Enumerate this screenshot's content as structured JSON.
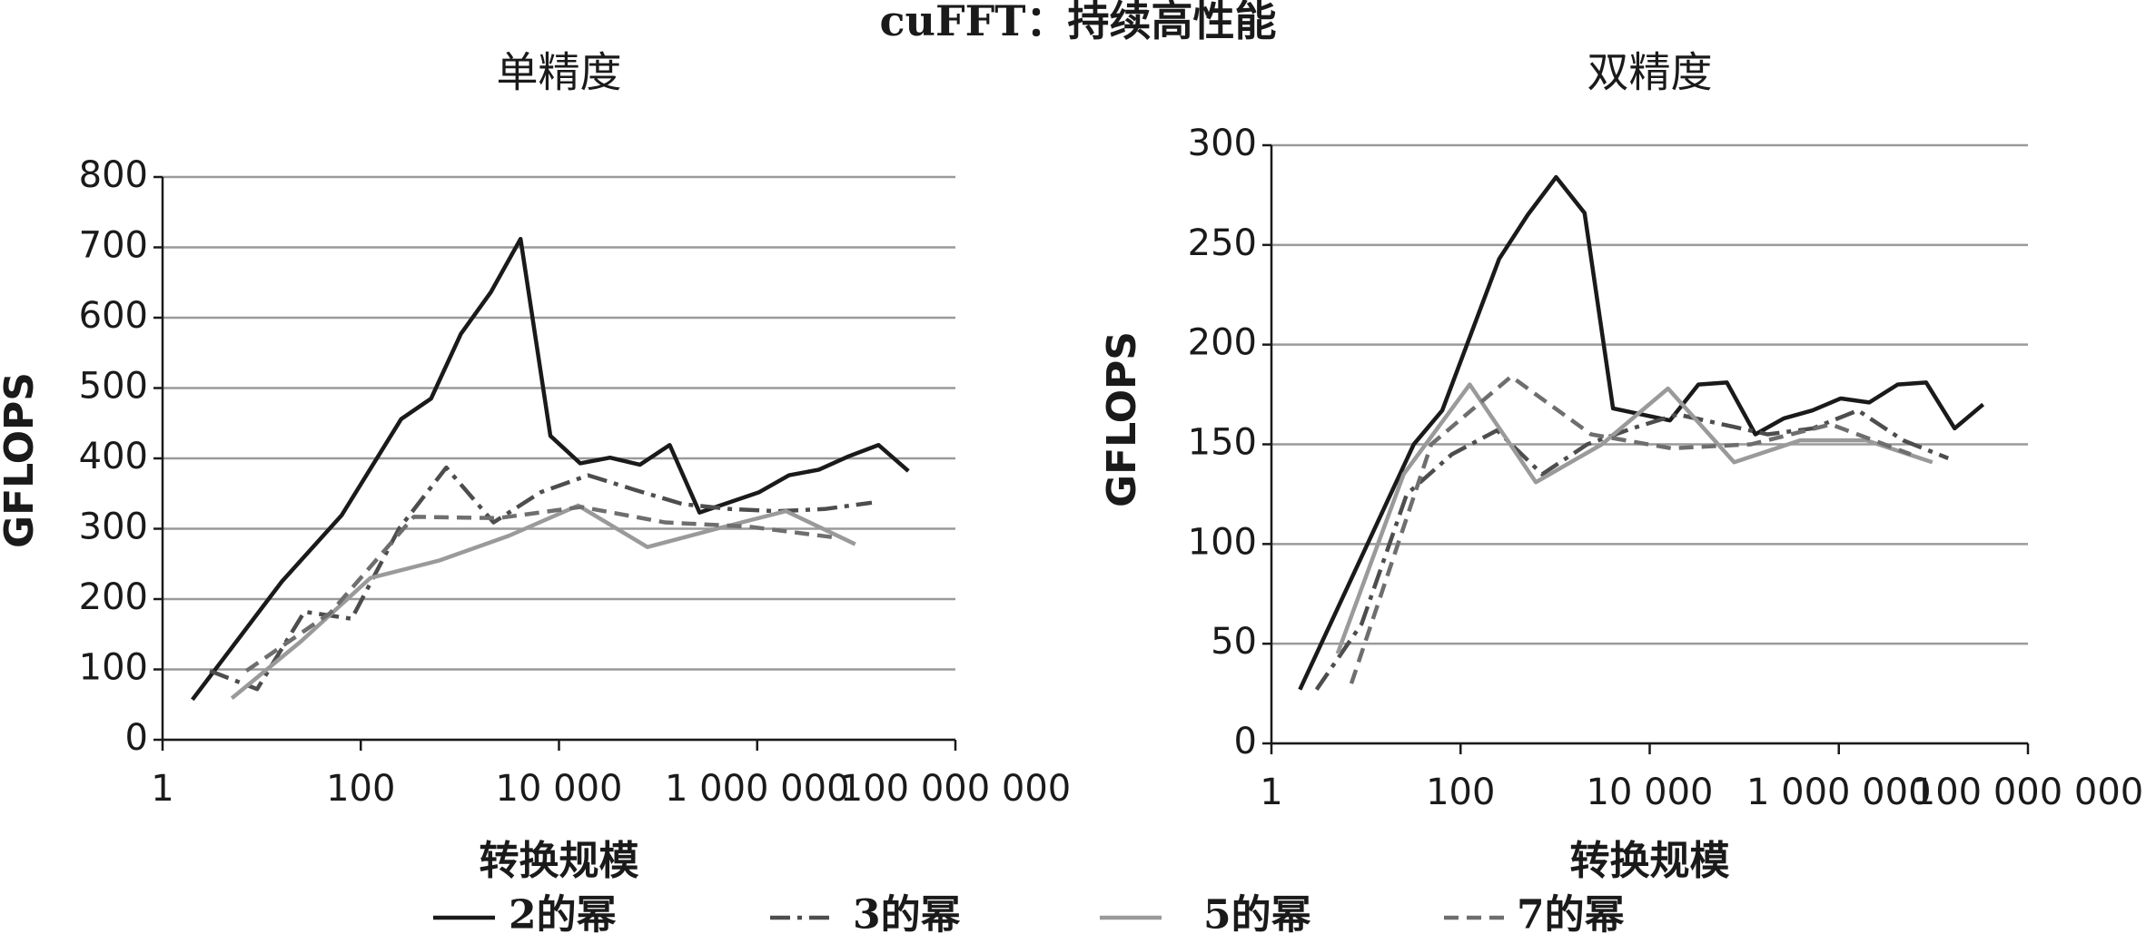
{
  "title": "cuFFT：持续高性能",
  "chart_data": [
    {
      "type": "line",
      "title": "单精度",
      "x_label": "转换规模",
      "y_label": "GFLOPS",
      "xscale": "log",
      "xlim": [
        1,
        100000000
      ],
      "xticks": [
        1,
        100,
        {
          "value": 10000,
          "label": "10 000"
        },
        {
          "value": 1000000,
          "label": "1 000 000"
        },
        {
          "value": 100000000,
          "label": "100 000 000"
        }
      ],
      "ylim": [
        0,
        800
      ],
      "yticks": [
        0,
        100,
        200,
        300,
        400,
        500,
        600,
        700,
        800
      ],
      "grid": true,
      "series": [
        {
          "name": "2的幂",
          "color": "#1a1a1a",
          "dash": "solid",
          "x": [
            2,
            16,
            64,
            256,
            512,
            1024,
            2048,
            4096,
            8192,
            16384,
            32768,
            65536,
            131072,
            262144,
            1048576,
            2097152,
            4194304,
            8388608,
            16777216,
            33554432
          ],
          "values": [
            57,
            225,
            319,
            456,
            485,
            577,
            636,
            712,
            432,
            393,
            401,
            391,
            419,
            323,
            352,
            376,
            384,
            403,
            419,
            382
          ]
        },
        {
          "name": "3的幂",
          "color": "#4d4d4d",
          "dash": "dashdot",
          "x": [
            3,
            9,
            27,
            81,
            243,
            729,
            2187,
            6561,
            19683,
            59049,
            177147,
            531441,
            1594323,
            4782969,
            14348907
          ],
          "values": [
            98,
            72,
            182,
            172,
            300,
            387,
            309,
            352,
            376,
            355,
            335,
            328,
            325,
            328,
            337
          ]
        },
        {
          "name": "5的幂",
          "color": "#9a9a9a",
          "dash": "solid",
          "x": [
            5,
            25,
            125,
            625,
            3125,
            15625,
            78125,
            390625,
            1953125,
            9765625
          ],
          "values": [
            59,
            140,
            230,
            255,
            290,
            333,
            274,
            300,
            325,
            278
          ]
        },
        {
          "name": "7的幂",
          "color": "#6e6e6e",
          "dash": "dashed",
          "x": [
            7,
            49,
            343,
            2401,
            16807,
            117649,
            823543,
            5764801
          ],
          "values": [
            98,
            180,
            317,
            315,
            331,
            309,
            303,
            288
          ]
        }
      ]
    },
    {
      "type": "line",
      "title": "双精度",
      "x_label": "转换规模",
      "y_label": "GFLOPS",
      "xscale": "log",
      "xlim": [
        1,
        100000000
      ],
      "xticks": [
        1,
        100,
        {
          "value": 10000,
          "label": "10 000"
        },
        {
          "value": 1000000,
          "label": "1 000 000"
        },
        {
          "value": 100000000,
          "label": "100 000 000"
        }
      ],
      "ylim": [
        0,
        300
      ],
      "yticks": [
        0,
        50,
        100,
        150,
        200,
        250,
        300
      ],
      "grid": true,
      "series": [
        {
          "name": "2的幂",
          "color": "#1a1a1a",
          "dash": "solid",
          "x": [
            2,
            32,
            64,
            128,
            256,
            512,
            1024,
            2048,
            4096,
            8192,
            16384,
            32768,
            65536,
            131072,
            262144,
            524288,
            1048576,
            2097152,
            4194304,
            8388608,
            16777216,
            33554432
          ],
          "values": [
            27,
            150,
            167,
            205,
            243,
            265,
            284,
            266,
            168,
            165,
            162,
            180,
            181,
            155,
            163,
            167,
            173,
            171,
            180,
            181,
            158,
            170
          ]
        },
        {
          "name": "3的幂",
          "color": "#4d4d4d",
          "dash": "dashdot",
          "x": [
            3,
            9,
            27,
            81,
            243,
            729,
            2187,
            6561,
            19683,
            59049,
            177147,
            531441,
            1594323,
            4782969,
            14348907
          ],
          "values": [
            27,
            60,
            125,
            145,
            157,
            135,
            150,
            158,
            165,
            160,
            155,
            158,
            167,
            152,
            143
          ]
        },
        {
          "name": "5的幂",
          "color": "#9a9a9a",
          "dash": "solid",
          "x": [
            5,
            25,
            125,
            625,
            3125,
            15625,
            78125,
            390625,
            1953125,
            9765625
          ],
          "values": [
            45,
            135,
            180,
            131,
            150,
            178,
            141,
            152,
            152,
            141
          ]
        },
        {
          "name": "7的幂",
          "color": "#6e6e6e",
          "dash": "dashed",
          "x": [
            7,
            49,
            343,
            2401,
            16807,
            117649,
            823543,
            5764801
          ],
          "values": [
            30,
            150,
            184,
            155,
            148,
            150,
            160,
            145
          ]
        }
      ]
    }
  ]
}
